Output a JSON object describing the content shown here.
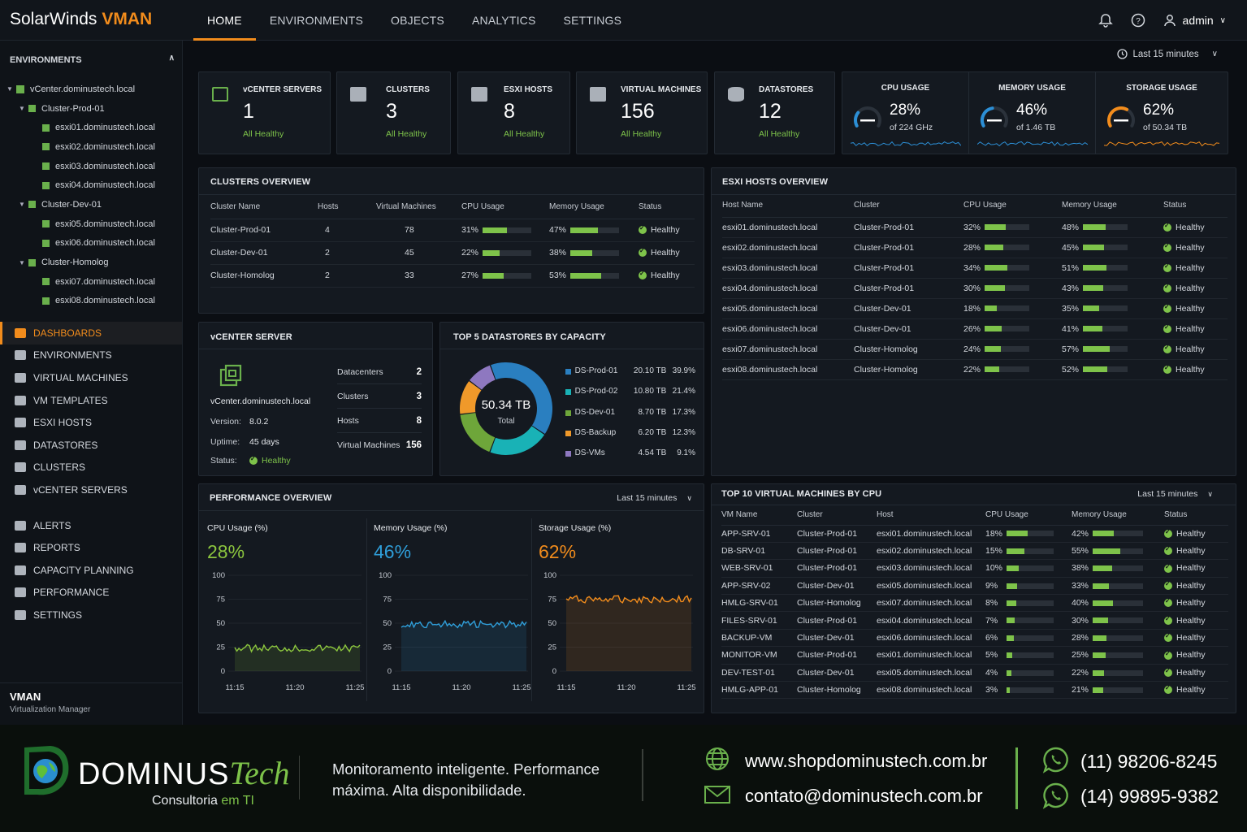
{
  "header": {
    "brand1": "SolarWinds",
    "brand2": "VMAN",
    "nav": [
      "HOME",
      "ENVIRONMENTS",
      "OBJECTS",
      "ANALYTICS",
      "SETTINGS"
    ],
    "active_nav": "HOME",
    "user": "admin"
  },
  "sidebar": {
    "environments_title": "ENVIRONMENTS",
    "tree": [
      {
        "label": "vCenter.dominustech.local",
        "level": 0,
        "arrow": true
      },
      {
        "label": "Cluster-Prod-01",
        "level": 1,
        "arrow": true
      },
      {
        "label": "esxi01.dominustech.local",
        "level": 2
      },
      {
        "label": "esxi02.dominustech.local",
        "level": 2
      },
      {
        "label": "esxi03.dominustech.local",
        "level": 2
      },
      {
        "label": "esxi04.dominustech.local",
        "level": 2
      },
      {
        "label": "Cluster-Dev-01",
        "level": 1,
        "arrow": true
      },
      {
        "label": "esxi05.dominustech.local",
        "level": 2
      },
      {
        "label": "esxi06.dominustech.local",
        "level": 2
      },
      {
        "label": "Cluster-Homolog",
        "level": 1,
        "arrow": true
      },
      {
        "label": "esxi07.dominustech.local",
        "level": 2
      },
      {
        "label": "esxi08.dominustech.local",
        "level": 2
      }
    ],
    "menu": [
      "DASHBOARDS",
      "ENVIRONMENTS",
      "VIRTUAL MACHINES",
      "VM TEMPLATES",
      "ESXI HOSTS",
      "DATASTORES",
      "CLUSTERS",
      "vCENTER SERVERS"
    ],
    "menu2": [
      "ALERTS",
      "REPORTS",
      "CAPACITY PLANNING",
      "PERFORMANCE",
      "SETTINGS"
    ],
    "app_name": "VMAN",
    "app_sub": "Virtualization Manager"
  },
  "time_range": "Last 15 minutes",
  "kpis": [
    {
      "label": "vCENTER SERVERS",
      "value": "1",
      "status": "All Healthy"
    },
    {
      "label": "CLUSTERS",
      "value": "3",
      "status": "All Healthy"
    },
    {
      "label": "ESXI HOSTS",
      "value": "8",
      "status": "All Healthy"
    },
    {
      "label": "VIRTUAL MACHINES",
      "value": "156",
      "status": "All Healthy"
    },
    {
      "label": "DATASTORES",
      "value": "12",
      "status": "All Healthy"
    }
  ],
  "usage": [
    {
      "label": "CPU USAGE",
      "pct": "28%",
      "sub": "of 224 GHz",
      "value": 28,
      "color": "#2c8fd6"
    },
    {
      "label": "MEMORY USAGE",
      "pct": "46%",
      "sub": "of 1.46 TB",
      "value": 46,
      "color": "#2c8fd6"
    },
    {
      "label": "STORAGE USAGE",
      "pct": "62%",
      "sub": "of 50.34 TB",
      "value": 62,
      "color": "#f28c1c"
    }
  ],
  "clusters": {
    "title": "CLUSTERS OVERVIEW",
    "headers": [
      "Cluster Name",
      "Hosts",
      "Virtual Machines",
      "CPU Usage",
      "Memory Usage",
      "Status"
    ],
    "rows": [
      {
        "name": "Cluster-Prod-01",
        "hosts": "4",
        "vms": "78",
        "cpu": "31%",
        "cpu_v": 31,
        "mem": "47%",
        "mem_v": 47,
        "status": "Healthy"
      },
      {
        "name": "Cluster-Dev-01",
        "hosts": "2",
        "vms": "45",
        "cpu": "22%",
        "cpu_v": 22,
        "mem": "38%",
        "mem_v": 38,
        "status": "Healthy"
      },
      {
        "name": "Cluster-Homolog",
        "hosts": "2",
        "vms": "33",
        "cpu": "27%",
        "cpu_v": 27,
        "mem": "53%",
        "mem_v": 53,
        "status": "Healthy"
      }
    ]
  },
  "esxi": {
    "title": "ESXI HOSTS OVERVIEW",
    "headers": [
      "Host Name",
      "Cluster",
      "CPU Usage",
      "Memory Usage",
      "Status"
    ],
    "rows": [
      {
        "host": "esxi01.dominustech.local",
        "cluster": "Cluster-Prod-01",
        "cpu": "32%",
        "cpu_v": 32,
        "mem": "48%",
        "mem_v": 48,
        "status": "Healthy"
      },
      {
        "host": "esxi02.dominustech.local",
        "cluster": "Cluster-Prod-01",
        "cpu": "28%",
        "cpu_v": 28,
        "mem": "45%",
        "mem_v": 45,
        "status": "Healthy"
      },
      {
        "host": "esxi03.dominustech.local",
        "cluster": "Cluster-Prod-01",
        "cpu": "34%",
        "cpu_v": 34,
        "mem": "51%",
        "mem_v": 51,
        "status": "Healthy"
      },
      {
        "host": "esxi04.dominustech.local",
        "cluster": "Cluster-Prod-01",
        "cpu": "30%",
        "cpu_v": 30,
        "mem": "43%",
        "mem_v": 43,
        "status": "Healthy"
      },
      {
        "host": "esxi05.dominustech.local",
        "cluster": "Cluster-Dev-01",
        "cpu": "18%",
        "cpu_v": 18,
        "mem": "35%",
        "mem_v": 35,
        "status": "Healthy"
      },
      {
        "host": "esxi06.dominustech.local",
        "cluster": "Cluster-Dev-01",
        "cpu": "26%",
        "cpu_v": 26,
        "mem": "41%",
        "mem_v": 41,
        "status": "Healthy"
      },
      {
        "host": "esxi07.dominustech.local",
        "cluster": "Cluster-Homolog",
        "cpu": "24%",
        "cpu_v": 24,
        "mem": "57%",
        "mem_v": 57,
        "status": "Healthy"
      },
      {
        "host": "esxi08.dominustech.local",
        "cluster": "Cluster-Homolog",
        "cpu": "22%",
        "cpu_v": 22,
        "mem": "52%",
        "mem_v": 52,
        "status": "Healthy"
      }
    ]
  },
  "vcenter": {
    "title": "vCENTER SERVER",
    "name": "vCenter.dominustech.local",
    "version_label": "Version:",
    "version": "8.0.2",
    "uptime_label": "Uptime:",
    "uptime": "45 days",
    "status_label": "Status:",
    "status": "Healthy",
    "stats": [
      {
        "label": "Datacenters",
        "value": "2"
      },
      {
        "label": "Clusters",
        "value": "3"
      },
      {
        "label": "Hosts",
        "value": "8"
      },
      {
        "label": "Virtual Machines",
        "value": "156"
      }
    ]
  },
  "datastores": {
    "title": "TOP 5 DATASTORES BY CAPACITY",
    "total": "50.34 TB",
    "total_label": "Total",
    "rows": [
      {
        "name": "DS-Prod-01",
        "size": "20.10 TB",
        "pct": "39.9%",
        "value": 39.9,
        "color": "#2a7fc0"
      },
      {
        "name": "DS-Prod-02",
        "size": "10.80 TB",
        "pct": "21.4%",
        "value": 21.4,
        "color": "#19b2b6"
      },
      {
        "name": "DS-Dev-01",
        "size": "8.70 TB",
        "pct": "17.3%",
        "value": 17.3,
        "color": "#6ea63a"
      },
      {
        "name": "DS-Backup",
        "size": "6.20 TB",
        "pct": "12.3%",
        "value": 12.3,
        "color": "#f0992a"
      },
      {
        "name": "DS-VMs",
        "size": "4.54 TB",
        "pct": "9.1%",
        "value": 9.1,
        "color": "#8e78c0"
      }
    ]
  },
  "performance": {
    "title": "PERFORMANCE OVERVIEW",
    "range": "Last 15 minutes",
    "charts": [
      {
        "label": "CPU Usage (%)",
        "value": "28%",
        "color": "#8cc63e",
        "level": 24,
        "yticks": [
          "100",
          "75",
          "50",
          "25",
          "0"
        ],
        "xticks": [
          "11:15",
          "11:20",
          "11:25"
        ]
      },
      {
        "label": "Memory Usage (%)",
        "value": "46%",
        "color": "#2f9ed9",
        "level": 49,
        "yticks": [
          "100",
          "75",
          "50",
          "25",
          "0"
        ],
        "xticks": [
          "11:15",
          "11:20",
          "11:25"
        ]
      },
      {
        "label": "Storage Usage (%)",
        "value": "62%",
        "color": "#f28c1c",
        "level": 75,
        "yticks": [
          "100",
          "75",
          "50",
          "25",
          "0"
        ],
        "xticks": [
          "11:15",
          "11:20",
          "11:25"
        ]
      }
    ]
  },
  "topvm": {
    "title": "TOP 10 VIRTUAL MACHINES BY CPU",
    "range": "Last 15 minutes",
    "headers": [
      "VM Name",
      "Cluster",
      "Host",
      "CPU Usage",
      "Memory Usage",
      "Status"
    ],
    "rows": [
      {
        "vm": "APP-SRV-01",
        "cluster": "Cluster-Prod-01",
        "host": "esxi01.dominustech.local",
        "cpu": "18%",
        "cpu_v": 18,
        "mem": "42%",
        "mem_v": 42,
        "status": "Healthy"
      },
      {
        "vm": "DB-SRV-01",
        "cluster": "Cluster-Prod-01",
        "host": "esxi02.dominustech.local",
        "cpu": "15%",
        "cpu_v": 15,
        "mem": "55%",
        "mem_v": 55,
        "status": "Healthy"
      },
      {
        "vm": "WEB-SRV-01",
        "cluster": "Cluster-Prod-01",
        "host": "esxi03.dominustech.local",
        "cpu": "10%",
        "cpu_v": 10,
        "mem": "38%",
        "mem_v": 38,
        "status": "Healthy"
      },
      {
        "vm": "APP-SRV-02",
        "cluster": "Cluster-Dev-01",
        "host": "esxi05.dominustech.local",
        "cpu": "9%",
        "cpu_v": 9,
        "mem": "33%",
        "mem_v": 33,
        "status": "Healthy"
      },
      {
        "vm": "HMLG-SRV-01",
        "cluster": "Cluster-Homolog",
        "host": "esxi07.dominustech.local",
        "cpu": "8%",
        "cpu_v": 8,
        "mem": "40%",
        "mem_v": 40,
        "status": "Healthy"
      },
      {
        "vm": "FILES-SRV-01",
        "cluster": "Cluster-Prod-01",
        "host": "esxi04.dominustech.local",
        "cpu": "7%",
        "cpu_v": 7,
        "mem": "30%",
        "mem_v": 30,
        "status": "Healthy"
      },
      {
        "vm": "BACKUP-VM",
        "cluster": "Cluster-Dev-01",
        "host": "esxi06.dominustech.local",
        "cpu": "6%",
        "cpu_v": 6,
        "mem": "28%",
        "mem_v": 28,
        "status": "Healthy"
      },
      {
        "vm": "MONITOR-VM",
        "cluster": "Cluster-Prod-01",
        "host": "esxi01.dominustech.local",
        "cpu": "5%",
        "cpu_v": 5,
        "mem": "25%",
        "mem_v": 25,
        "status": "Healthy"
      },
      {
        "vm": "DEV-TEST-01",
        "cluster": "Cluster-Dev-01",
        "host": "esxi05.dominustech.local",
        "cpu": "4%",
        "cpu_v": 4,
        "mem": "22%",
        "mem_v": 22,
        "status": "Healthy"
      },
      {
        "vm": "HMLG-APP-01",
        "cluster": "Cluster-Homolog",
        "host": "esxi08.dominustech.local",
        "cpu": "3%",
        "cpu_v": 3,
        "mem": "21%",
        "mem_v": 21,
        "status": "Healthy"
      }
    ]
  },
  "footer": {
    "logo1": "DOMINUS",
    "logo2": "Tech",
    "logo_sub": "Consultoria",
    "logo_sub2": "em TI",
    "tagline1": "Monitoramento inteligente. Performance",
    "tagline2": "máxima. Alta disponibilidade.",
    "site": "www.shopdominustech.com.br",
    "email": "contato@dominustech.com.br",
    "phone1": "(11) 98206-8245",
    "phone2": "(14) 99895-9382"
  }
}
